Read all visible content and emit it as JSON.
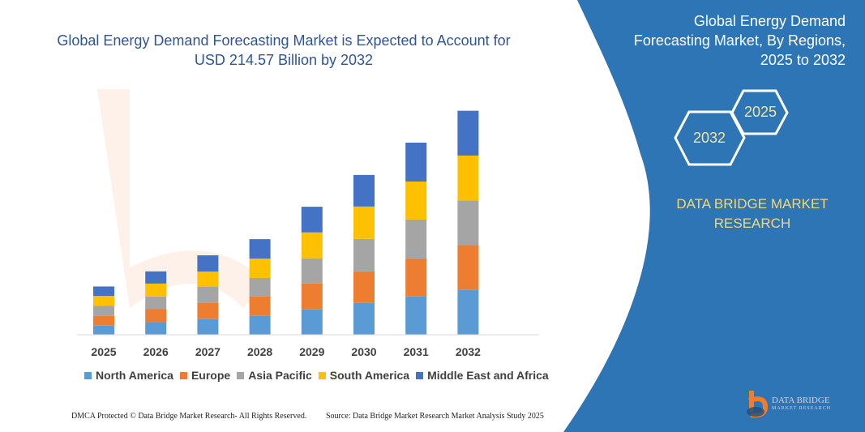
{
  "header": {
    "title": "Global Energy Demand Forecasting Market is Expected to Account for USD 214.57 Billion by 2032",
    "side_title_lines": [
      "Global Energy Demand",
      "Forecasting Market, By Regions,",
      "2025 to 2032"
    ],
    "hex_years": [
      "2032",
      "2025"
    ],
    "brand_lines": [
      "DATA BRIDGE MARKET",
      "RESEARCH"
    ]
  },
  "footer": {
    "copyright": "DMCA Protected © Data Bridge Market Research- All Rights Reserved.",
    "source": "Source: Data Bridge Market Research  Market Analysis Study 2025",
    "logo_text": "DATA BRIDGE",
    "logo_sub": "MARKET RESEARCH"
  },
  "colors": {
    "panel": "#2e75b6",
    "title": "#2f5597",
    "brand": "#f3d77c"
  },
  "chart_data": {
    "type": "bar",
    "stacked": true,
    "title": "Global Energy Demand Forecasting Market is Expected to Account for USD 214.57 Billion by 2032",
    "xlabel": "",
    "ylabel": "",
    "ylim": [
      0,
      215
    ],
    "grid": false,
    "legend_placement": "bottom",
    "categories": [
      "2025",
      "2026",
      "2027",
      "2028",
      "2029",
      "2030",
      "2031",
      "2032"
    ],
    "series": [
      {
        "name": "North America",
        "color": "#5b9bd5",
        "values": [
          8.3,
          11.7,
          14.5,
          17.6,
          23.9,
          30.1,
          36.3,
          42.5
        ]
      },
      {
        "name": "Europe",
        "color": "#ed7d31",
        "values": [
          9.3,
          12.4,
          15.5,
          18.6,
          24.9,
          30.3,
          36.5,
          43.0
        ]
      },
      {
        "name": "Asia Pacific",
        "color": "#a5a5a5",
        "values": [
          9.6,
          12.2,
          15.5,
          17.9,
          24.1,
          31.1,
          37.3,
          43.0
        ]
      },
      {
        "name": "South America",
        "color": "#ffc000",
        "values": [
          9.6,
          12.4,
          14.8,
          18.6,
          24.9,
          31.1,
          36.5,
          43.0
        ]
      },
      {
        "name": "Middle East and Africa",
        "color": "#4472c4",
        "values": [
          9.1,
          11.7,
          15.5,
          18.6,
          24.6,
          30.3,
          37.3,
          43.0
        ]
      }
    ]
  }
}
